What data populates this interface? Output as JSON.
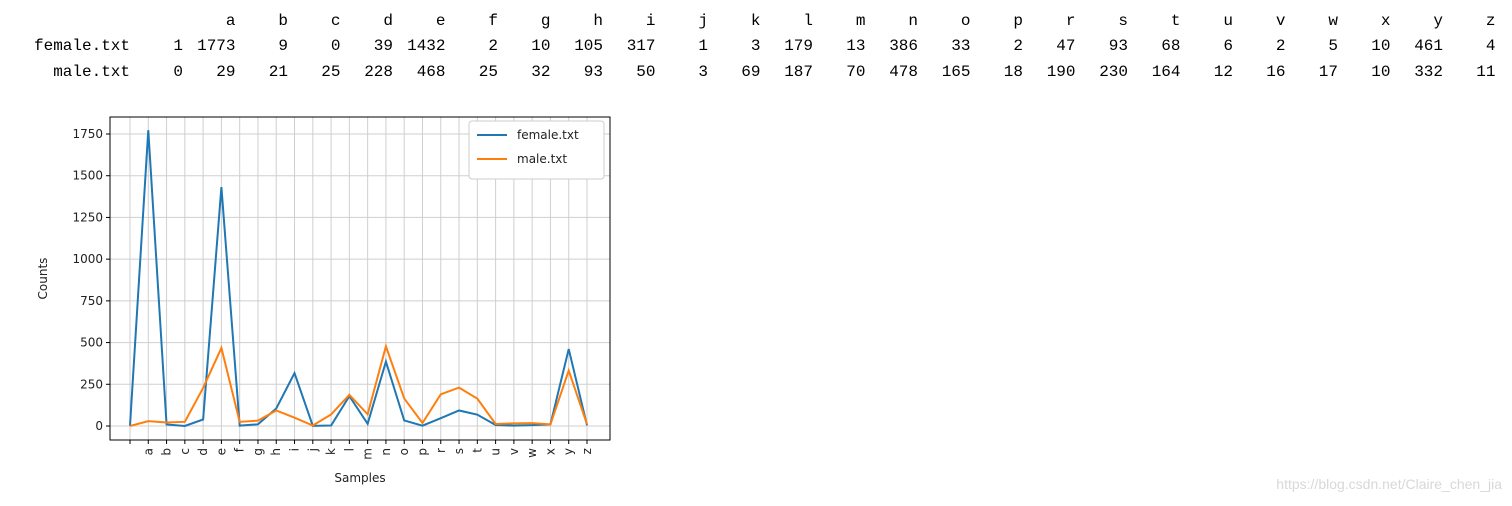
{
  "table": {
    "columns": [
      null,
      "a",
      "b",
      "c",
      "d",
      "e",
      "f",
      "g",
      "h",
      "i",
      "j",
      "k",
      "l",
      "m",
      "n",
      "o",
      "p",
      "r",
      "s",
      "t",
      "u",
      "v",
      "w",
      "x",
      "y",
      "z"
    ],
    "rows": [
      {
        "label": "female.txt",
        "values": [
          1,
          1773,
          9,
          0,
          39,
          1432,
          2,
          10,
          105,
          317,
          1,
          3,
          179,
          13,
          386,
          33,
          2,
          47,
          93,
          68,
          6,
          2,
          5,
          10,
          461,
          4
        ]
      },
      {
        "label": "male.txt",
        "values": [
          0,
          29,
          21,
          25,
          228,
          468,
          25,
          32,
          93,
          50,
          3,
          69,
          187,
          70,
          478,
          165,
          18,
          190,
          230,
          164,
          12,
          16,
          17,
          10,
          332,
          11
        ]
      }
    ]
  },
  "chart_data": {
    "type": "line",
    "x_label": "Samples",
    "y_label": "Counts",
    "categories": [
      null,
      "a",
      "b",
      "c",
      "d",
      "e",
      "f",
      "g",
      "h",
      "i",
      "j",
      "k",
      "l",
      "m",
      "n",
      "o",
      "p",
      "r",
      "s",
      "t",
      "u",
      "v",
      "w",
      "x",
      "y",
      "z"
    ],
    "series": [
      {
        "name": "female.txt",
        "color": "#1f77b4",
        "values": [
          1,
          1773,
          9,
          0,
          39,
          1432,
          2,
          10,
          105,
          317,
          1,
          3,
          179,
          13,
          386,
          33,
          2,
          47,
          93,
          68,
          6,
          2,
          5,
          10,
          461,
          4
        ]
      },
      {
        "name": "male.txt",
        "color": "#ff7f0e",
        "values": [
          0,
          29,
          21,
          25,
          228,
          468,
          25,
          32,
          93,
          50,
          3,
          69,
          187,
          70,
          478,
          165,
          18,
          190,
          230,
          164,
          12,
          16,
          17,
          10,
          332,
          11
        ]
      }
    ],
    "ylim": [
      -84,
      1852
    ],
    "yticks": [
      0,
      250,
      500,
      750,
      1000,
      1250,
      1500,
      1750
    ],
    "grid": true,
    "legend": "upper right"
  },
  "watermark": "https://blog.csdn.net/Claire_chen_jia"
}
